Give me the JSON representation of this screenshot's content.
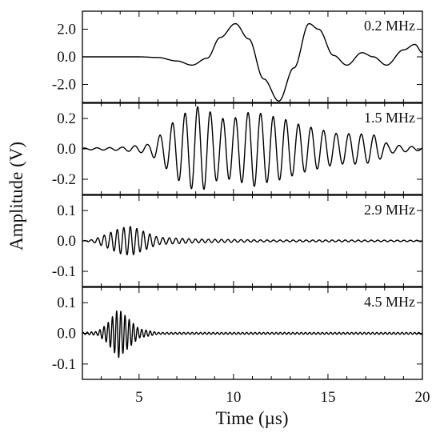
{
  "chart_data": {
    "type": "line",
    "shared_x": {
      "label": "Time (µs)",
      "range": [
        2,
        20
      ],
      "ticks": [
        5,
        10,
        15,
        20
      ],
      "tick_labels": [
        "5",
        "10",
        "15",
        "20"
      ]
    },
    "ylabel": "Amplitude (V)",
    "panels": [
      {
        "label": "0.2 MHz",
        "ylim": [
          -3.3,
          3.3
        ],
        "yticks": [
          2.0,
          0.0,
          -2.0
        ],
        "ytick_labels": [
          "2.0",
          "0.0",
          "-2.0"
        ],
        "points": [
          [
            2.0,
            0.0
          ],
          [
            5.0,
            0.0
          ],
          [
            6.0,
            -0.05
          ],
          [
            7.0,
            -0.3
          ],
          [
            7.8,
            -0.6
          ],
          [
            8.6,
            -0.1
          ],
          [
            9.3,
            1.4
          ],
          [
            10.1,
            2.4
          ],
          [
            10.8,
            1.3
          ],
          [
            11.6,
            -1.6
          ],
          [
            12.4,
            -3.2
          ],
          [
            13.2,
            -0.8
          ],
          [
            14.0,
            2.4
          ],
          [
            14.5,
            2.0
          ],
          [
            15.3,
            0.1
          ],
          [
            16.0,
            -0.6
          ],
          [
            16.8,
            0.3
          ],
          [
            17.4,
            0.0
          ],
          [
            18.1,
            -0.6
          ],
          [
            19.0,
            0.5
          ],
          [
            19.6,
            0.9
          ],
          [
            20.0,
            0.3
          ]
        ]
      },
      {
        "label": "1.5 MHz",
        "ylim": [
          -0.3,
          0.3
        ],
        "yticks": [
          0.2,
          0.0,
          -0.2
        ],
        "ytick_labels": [
          "0.2",
          "0.0",
          "-0.2"
        ],
        "frequency_mhz": 1.5,
        "envelope": [
          [
            2.0,
            0.005
          ],
          [
            4.0,
            0.01
          ],
          [
            5.5,
            0.03
          ],
          [
            6.2,
            0.1
          ],
          [
            7.0,
            0.2
          ],
          [
            8.0,
            0.28
          ],
          [
            8.6,
            0.26
          ],
          [
            9.2,
            0.2
          ],
          [
            10.0,
            0.2
          ],
          [
            11.0,
            0.25
          ],
          [
            11.8,
            0.22
          ],
          [
            12.6,
            0.2
          ],
          [
            13.5,
            0.16
          ],
          [
            14.5,
            0.13
          ],
          [
            15.5,
            0.1
          ],
          [
            16.5,
            0.1
          ],
          [
            17.5,
            0.09
          ],
          [
            18.2,
            0.03
          ],
          [
            19.0,
            0.02
          ],
          [
            20.0,
            0.01
          ]
        ]
      },
      {
        "label": "2.9 MHz",
        "ylim": [
          -0.15,
          0.15
        ],
        "yticks": [
          0.1,
          0.0,
          -0.1
        ],
        "ytick_labels": [
          "0.1",
          "0.0",
          "-0.1"
        ],
        "frequency_mhz": 2.9,
        "envelope": [
          [
            2.0,
            0.0
          ],
          [
            2.6,
            0.005
          ],
          [
            3.2,
            0.02
          ],
          [
            4.0,
            0.042
          ],
          [
            4.6,
            0.048
          ],
          [
            5.3,
            0.03
          ],
          [
            6.0,
            0.012
          ],
          [
            8.0,
            0.006
          ],
          [
            12.0,
            0.003
          ],
          [
            16.0,
            0.003
          ],
          [
            20.0,
            0.002
          ]
        ]
      },
      {
        "label": "4.5 MHz",
        "ylim": [
          -0.15,
          0.15
        ],
        "yticks": [
          0.1,
          0.0,
          -0.1
        ],
        "ytick_labels": [
          "0.1",
          "0.0",
          "-0.1"
        ],
        "frequency_mhz": 4.5,
        "envelope": [
          [
            2.0,
            0.003
          ],
          [
            2.8,
            0.006
          ],
          [
            3.3,
            0.03
          ],
          [
            3.9,
            0.08
          ],
          [
            4.4,
            0.05
          ],
          [
            5.0,
            0.015
          ],
          [
            6.0,
            0.003
          ],
          [
            20.0,
            0.003
          ]
        ]
      }
    ]
  }
}
